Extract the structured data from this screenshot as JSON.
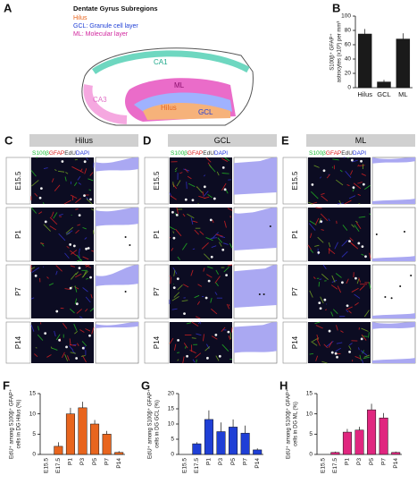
{
  "panel_a": {
    "letter": "A",
    "title": "Dentate Gyrus Subregions",
    "legend": [
      "Hilus",
      "GCL: Granule cell layer",
      "ML: Molecular layer"
    ],
    "regions": [
      "CA1",
      "CA3",
      "ML",
      "Hilus",
      "GCL"
    ]
  },
  "panel_grid": {
    "letters": [
      "C",
      "D",
      "E"
    ],
    "headers": [
      "Hilus",
      "GCL",
      "ML"
    ],
    "stain": [
      "S100β",
      "GFAP",
      "EdU",
      "DAPI"
    ],
    "ages": [
      "E15.5",
      "P1",
      "P7",
      "P14"
    ]
  },
  "chart_data": [
    {
      "type": "bar",
      "letter": "B",
      "ylabel": [
        "S100β⁺ GFAP⁺",
        "astrocytes (x10³) per mm³"
      ],
      "categories": [
        "Hilus",
        "GCL",
        "ML"
      ],
      "values": [
        75,
        8,
        68
      ],
      "errors": [
        7,
        3,
        8
      ],
      "color": "#1a1a1a",
      "ylim": [
        0,
        100
      ],
      "yticks": [
        0,
        20,
        40,
        60,
        80,
        100
      ]
    },
    {
      "type": "bar",
      "letter": "F",
      "ylabel": [
        "EdU⁺ among S100β⁺ GFAP⁺",
        "cells in DG Hilus (%)"
      ],
      "categories": [
        "E15.5",
        "E17.5",
        "P1",
        "P3",
        "P5",
        "P7",
        "P14"
      ],
      "values": [
        0,
        2,
        10,
        11.5,
        7.5,
        5,
        0.5
      ],
      "errors": [
        0,
        1,
        1.5,
        1.5,
        1,
        0.8,
        0.3
      ],
      "color": "#e8651e",
      "ylim": [
        0,
        15
      ],
      "yticks": [
        0,
        5,
        10,
        15
      ]
    },
    {
      "type": "bar",
      "letter": "G",
      "ylabel": [
        "EdU⁺ among S100β⁺ GFAP⁺",
        "cells in DG GCL (%)"
      ],
      "categories": [
        "E15.5",
        "E17.5",
        "P1",
        "P3",
        "P5",
        "P7",
        "P14"
      ],
      "values": [
        0,
        3.5,
        11.5,
        7.5,
        9,
        7,
        1.5
      ],
      "errors": [
        0,
        0.5,
        3,
        3,
        2.5,
        2.5,
        0.5
      ],
      "color": "#1f3fd6",
      "ylim": [
        0,
        20
      ],
      "yticks": [
        0,
        5,
        10,
        15,
        20
      ]
    },
    {
      "type": "bar",
      "letter": "H",
      "ylabel": [
        "EdU⁺ among S100β⁺ GFAP⁺",
        "cells in DG ML (%)"
      ],
      "categories": [
        "E15.5",
        "E17.5",
        "P1",
        "P3",
        "P5",
        "P7",
        "P14"
      ],
      "values": [
        0,
        0.5,
        5.5,
        6,
        11,
        9,
        0.5
      ],
      "errors": [
        0,
        0.2,
        0.8,
        0.8,
        1.5,
        1.2,
        0.2
      ],
      "color": "#e0267f",
      "ylim": [
        0,
        15
      ],
      "yticks": [
        0,
        5,
        10,
        15
      ]
    }
  ]
}
